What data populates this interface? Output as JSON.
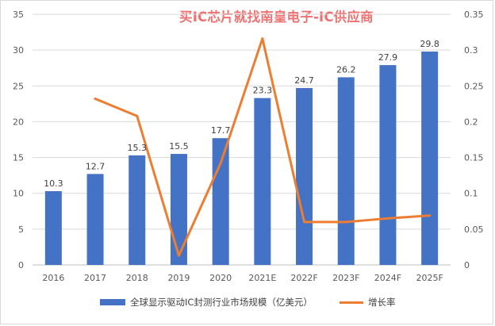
{
  "watermark": "买IC芯片就找南皇电子-IC供应商",
  "chart_data": {
    "type": "bar",
    "categories": [
      "2016",
      "2017",
      "2018",
      "2019",
      "2020",
      "2021E",
      "2022F",
      "2023F",
      "2024F",
      "2025F"
    ],
    "series": [
      {
        "name": "全球显示驱动IC封测行业市场规模（亿美元）",
        "type": "bar",
        "axis": "left",
        "values": [
          10.3,
          12.7,
          15.3,
          15.5,
          17.7,
          23.3,
          24.7,
          26.2,
          27.9,
          29.8
        ],
        "labels": [
          "10.3",
          "12.7",
          "15.3",
          "15.5",
          "17.7",
          "23.3",
          "24.7",
          "26.2",
          "27.9",
          "29.8"
        ],
        "color": "#4472C4"
      },
      {
        "name": "增长率",
        "type": "line",
        "axis": "right",
        "values": [
          null,
          0.232,
          0.208,
          0.013,
          0.142,
          0.316,
          0.06,
          0.06,
          0.065,
          0.069
        ],
        "color": "#ED7D31"
      }
    ],
    "y_left": {
      "min": 0,
      "max": 35,
      "ticks": [
        "0",
        "5",
        "10",
        "15",
        "20",
        "25",
        "30",
        "35"
      ]
    },
    "y_right": {
      "min": 0,
      "max": 0.35,
      "ticks": [
        "0",
        "0.05",
        "0.1",
        "0.15",
        "0.2",
        "0.25",
        "0.3",
        "0.35"
      ]
    },
    "grid": true,
    "legend": "bottom"
  }
}
